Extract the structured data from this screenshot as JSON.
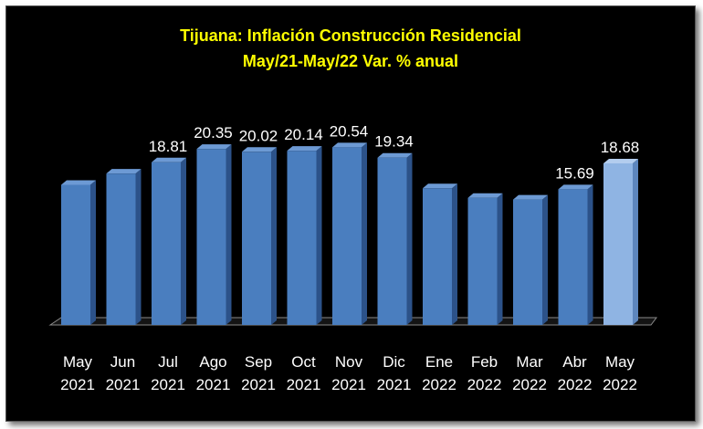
{
  "chart_data": {
    "type": "bar",
    "title": "Tijuana: Inflación Construcción Residencial",
    "subtitle": "May/21-May/22 Var. % anual",
    "categories": [
      [
        "May",
        "2021"
      ],
      [
        "Jun",
        "2021"
      ],
      [
        "Jul",
        "2021"
      ],
      [
        "Ago",
        "2021"
      ],
      [
        "Sep",
        "2021"
      ],
      [
        "Oct",
        "2021"
      ],
      [
        "Nov",
        "2021"
      ],
      [
        "Dic",
        "2021"
      ],
      [
        "Ene",
        "2022"
      ],
      [
        "Feb",
        "2022"
      ],
      [
        "Mar",
        "2022"
      ],
      [
        "Abr",
        "2022"
      ],
      [
        "May",
        "2022"
      ]
    ],
    "values": [
      16.2,
      17.5,
      18.81,
      20.35,
      20.02,
      20.14,
      20.54,
      19.34,
      15.8,
      14.7,
      14.5,
      15.69,
      18.68
    ],
    "data_labels": [
      null,
      null,
      "18.81",
      "20.35",
      "20.02",
      "20.14",
      "20.54",
      "19.34",
      null,
      null,
      null,
      "15.69",
      "18.68"
    ],
    "highlight_index": 12,
    "ylim": [
      0,
      21
    ],
    "grid": false,
    "xlabel": "",
    "ylabel": "",
    "colors": {
      "bar_front": "#4a7ebf",
      "bar_side": "#2c5289",
      "bar_top": "#6d9ad4",
      "highlight_front": "#8fb4e3",
      "highlight_side": "#5d86bd",
      "highlight_top": "#b3cdee",
      "title": "#ffff00",
      "labels": "#ffffff",
      "background": "#000000"
    }
  }
}
